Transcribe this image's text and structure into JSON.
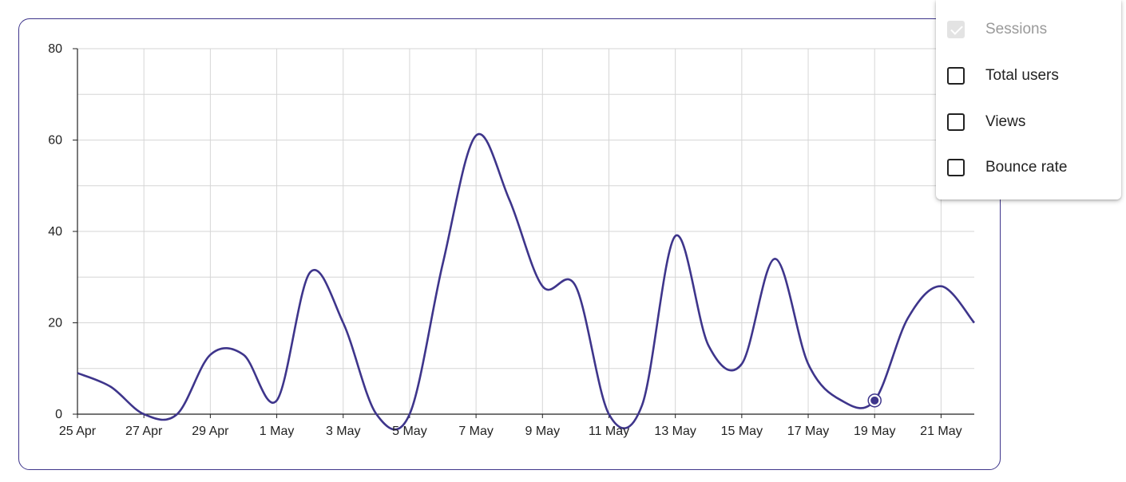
{
  "chart_data": {
    "type": "line",
    "x": [
      "25 Apr",
      "26 Apr",
      "27 Apr",
      "28 Apr",
      "29 Apr",
      "30 Apr",
      "1 May",
      "2 May",
      "3 May",
      "4 May",
      "5 May",
      "6 May",
      "7 May",
      "8 May",
      "9 May",
      "10 May",
      "11 May",
      "12 May",
      "13 May",
      "14 May",
      "15 May",
      "16 May",
      "17 May",
      "18 May",
      "19 May",
      "20 May",
      "21 May",
      "22 May"
    ],
    "xticks": [
      "25 Apr",
      "27 Apr",
      "29 Apr",
      "1 May",
      "3 May",
      "5 May",
      "7 May",
      "9 May",
      "11 May",
      "13 May",
      "15 May",
      "17 May",
      "19 May",
      "21 May"
    ],
    "series": [
      {
        "name": "Sessions",
        "values": [
          9,
          6,
          0,
          0,
          13,
          13,
          3,
          31,
          20,
          0,
          0,
          33,
          61,
          47,
          28,
          28,
          0,
          2,
          39,
          15,
          11,
          34,
          11,
          3,
          3,
          21,
          28,
          20
        ]
      }
    ],
    "ylim": [
      0,
      80
    ],
    "yticks": [
      0,
      20,
      40,
      60,
      80
    ],
    "grid": true,
    "highlighted_point": "19 May",
    "line_color": "#3e358b"
  },
  "legend": {
    "items": [
      {
        "label": "Sessions",
        "checked": true,
        "disabled": true
      },
      {
        "label": "Total users",
        "checked": false,
        "disabled": false
      },
      {
        "label": "Views",
        "checked": false,
        "disabled": false
      },
      {
        "label": "Bounce rate",
        "checked": false,
        "disabled": false
      }
    ]
  }
}
